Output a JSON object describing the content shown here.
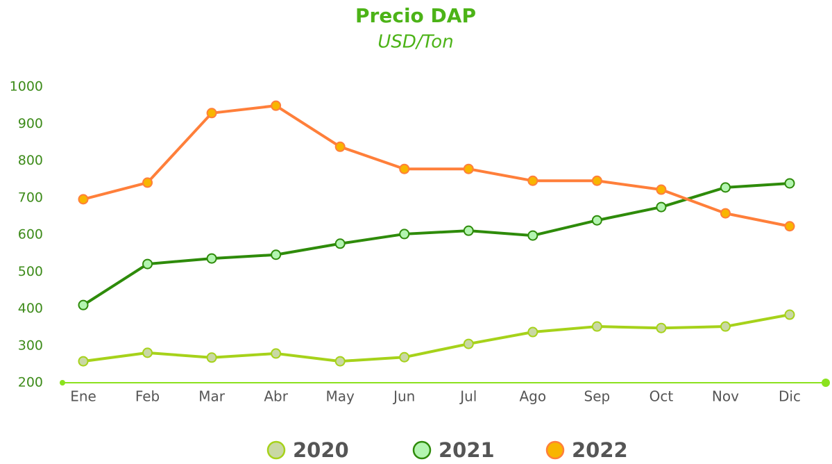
{
  "chart_data": {
    "type": "line",
    "title": "Precio DAP",
    "subtitle": "USD/Ton",
    "categories": [
      "Ene",
      "Feb",
      "Mar",
      "Abr",
      "May",
      "Jun",
      "Jul",
      "Ago",
      "Sep",
      "Oct",
      "Nov",
      "Dic"
    ],
    "series": [
      {
        "name": "2020",
        "color": "#a6d21a",
        "marker_fill": "#c9d8a4",
        "values": [
          258,
          281,
          268,
          279,
          258,
          269,
          305,
          337,
          352,
          348,
          352,
          384
        ]
      },
      {
        "name": "2021",
        "color": "#2e8b0a",
        "marker_fill": "#b3f5b0",
        "values": [
          410,
          521,
          536,
          546,
          576,
          602,
          611,
          598,
          639,
          675,
          728,
          739
        ]
      },
      {
        "name": "2022",
        "color": "#ff7f3a",
        "marker_fill": "#f8b500",
        "values": [
          696,
          741,
          929,
          949,
          838,
          778,
          778,
          746,
          746,
          722,
          658,
          623
        ]
      }
    ],
    "ylim": [
      200,
      1000
    ],
    "yticks": [
      200,
      300,
      400,
      500,
      600,
      700,
      800,
      900,
      1000
    ],
    "legend": "bottom",
    "grid": false
  }
}
